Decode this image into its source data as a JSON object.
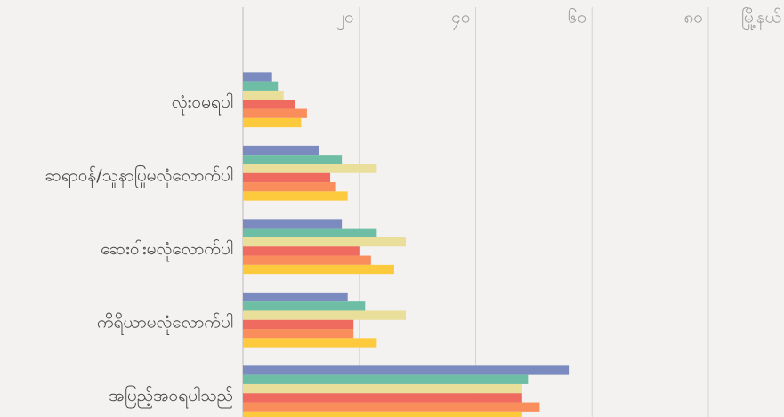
{
  "chart_data": {
    "type": "hbar",
    "x_label": "မြို့နယ်",
    "categories": [
      "လုံးဝမရပါ",
      "ဆရာဝန်/သူနာပြုမလုံလောက်ပါ",
      "ဆေးဝါးမလုံလောက်ပါ",
      "ကိရိယာမလုံလောက်ပါ",
      "အပြည့်အဝရပါသည်"
    ],
    "series": [
      {
        "color": "#7b8bc0",
        "values": [
          5,
          13,
          17,
          18,
          56
        ]
      },
      {
        "color": "#6dbea5",
        "values": [
          6,
          17,
          23,
          21,
          49
        ]
      },
      {
        "color": "#e9df9b",
        "values": [
          7,
          23,
          28,
          28,
          48
        ]
      },
      {
        "color": "#ef6a5f",
        "values": [
          9,
          15,
          20,
          19,
          48
        ]
      },
      {
        "color": "#f98d5b",
        "values": [
          11,
          16,
          22,
          19,
          51
        ]
      },
      {
        "color": "#fdc93d",
        "values": [
          10,
          18,
          26,
          23,
          48
        ]
      }
    ],
    "xlim": [
      0,
      93
    ],
    "xticks": [
      {
        "value": 20,
        "label": "၂၀"
      },
      {
        "value": 40,
        "label": "၄၀"
      },
      {
        "value": 60,
        "label": "၆၀"
      },
      {
        "value": 80,
        "label": "၈၀"
      }
    ],
    "grid": true
  }
}
